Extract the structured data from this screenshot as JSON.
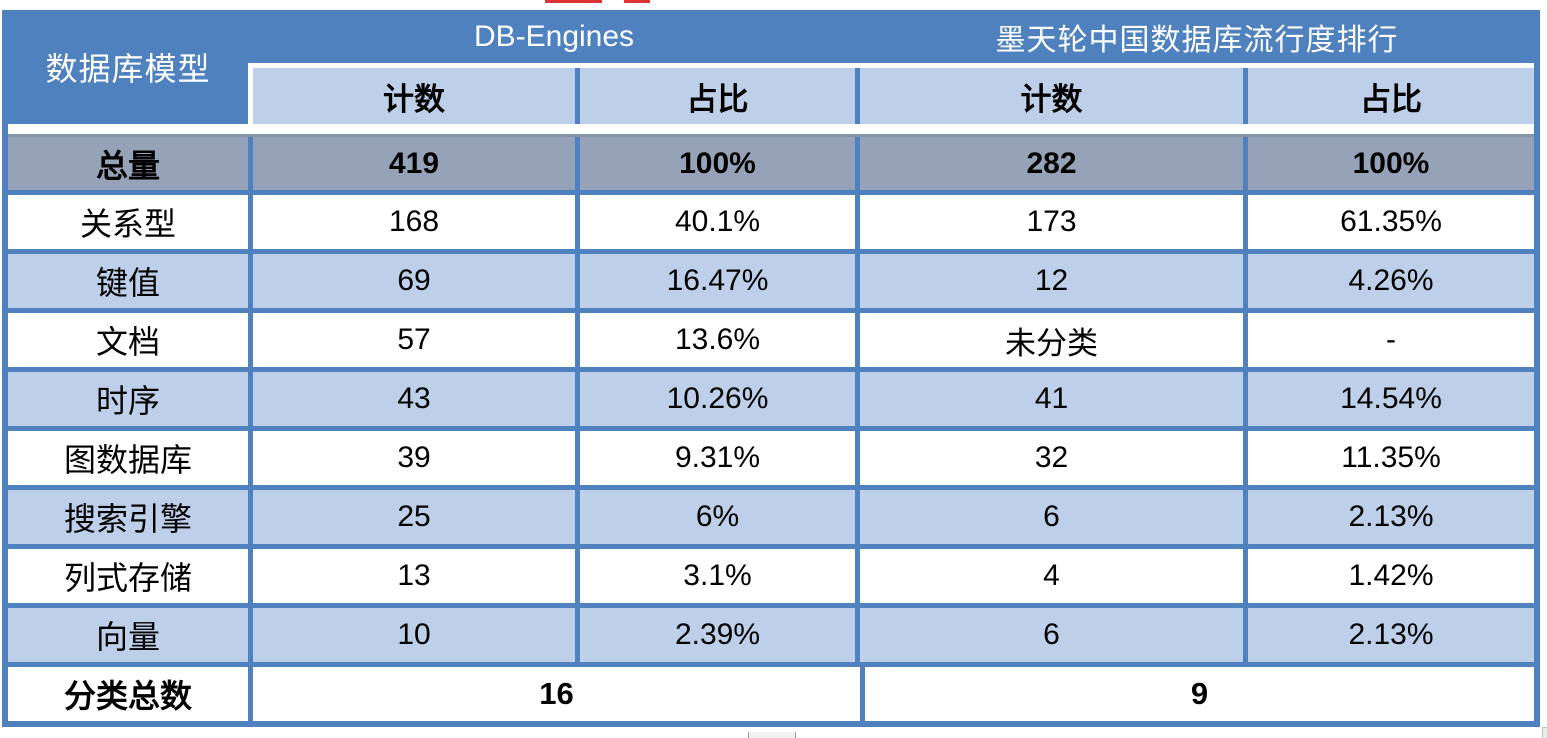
{
  "colors": {
    "blue": "#4E81BD",
    "light_blue": "#BDCFE9",
    "gray": "#95A2B7",
    "border": "#4E81BD",
    "gray_edge": "#8593A9",
    "red": "#E03434"
  },
  "chart_data": {
    "type": "table",
    "corner_header": "数据库模型",
    "group_headers": [
      "DB-Engines",
      "墨天轮中国数据库流行度排行"
    ],
    "sub_headers": [
      "计数",
      "占比",
      "计数",
      "占比"
    ],
    "rows": [
      {
        "label": "总量",
        "style": "total",
        "values": [
          "419",
          "100%",
          "282",
          "100%"
        ]
      },
      {
        "label": "关系型",
        "style": "white",
        "values": [
          "168",
          "40.1%",
          "173",
          "61.35%"
        ]
      },
      {
        "label": "键值",
        "style": "blue",
        "values": [
          "69",
          "16.47%",
          "12",
          "4.26%"
        ]
      },
      {
        "label": "文档",
        "style": "white",
        "values": [
          "57",
          "13.6%",
          "未分类",
          "-"
        ]
      },
      {
        "label": "时序",
        "style": "blue",
        "values": [
          "43",
          "10.26%",
          "41",
          "14.54%"
        ]
      },
      {
        "label": "图数据库",
        "style": "white",
        "values": [
          "39",
          "9.31%",
          "32",
          "11.35%"
        ]
      },
      {
        "label": "搜索引擎",
        "style": "blue",
        "values": [
          "25",
          "6%",
          "6",
          "2.13%"
        ]
      },
      {
        "label": "列式存储",
        "style": "white",
        "values": [
          "13",
          "3.1%",
          "4",
          "1.42%"
        ]
      },
      {
        "label": "向量",
        "style": "blue",
        "values": [
          "10",
          "2.39%",
          "6",
          "2.13%"
        ]
      }
    ],
    "footer": {
      "label": "分类总数",
      "values": [
        "16",
        "9"
      ]
    },
    "layout": {
      "grid": "blue borders",
      "row_striping": "white / light-blue alternating",
      "summary_row": "gray"
    }
  }
}
